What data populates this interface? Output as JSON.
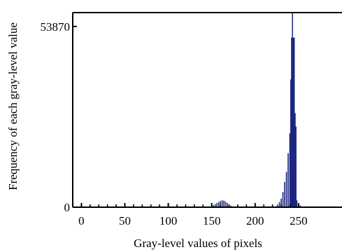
{
  "chart_data": {
    "type": "bar",
    "xlabel": "Gray-level values of pixels",
    "ylabel": "Frequency of each gray-level value",
    "xlim": [
      -10,
      300
    ],
    "ylim": [
      0,
      58000
    ],
    "x_ticks": [
      0,
      50,
      100,
      150,
      200,
      250
    ],
    "y_ticks": [
      0,
      53870
    ],
    "grid": false,
    "bar_color": "#1a237e",
    "x": [
      150,
      152,
      154,
      156,
      158,
      160,
      162,
      164,
      166,
      168,
      170,
      172,
      174,
      224,
      226,
      228,
      230,
      232,
      234,
      236,
      238,
      240,
      241,
      242,
      243,
      244,
      245,
      246,
      247,
      248,
      250,
      252,
      254
    ],
    "values": [
      300,
      600,
      900,
      1200,
      1500,
      1800,
      2000,
      1900,
      1600,
      1200,
      800,
      400,
      150,
      300,
      800,
      1500,
      2500,
      4500,
      7500,
      10500,
      16000,
      22000,
      38000,
      50500,
      58000,
      50500,
      50500,
      28000,
      24000,
      2000,
      800,
      500,
      200
    ]
  }
}
